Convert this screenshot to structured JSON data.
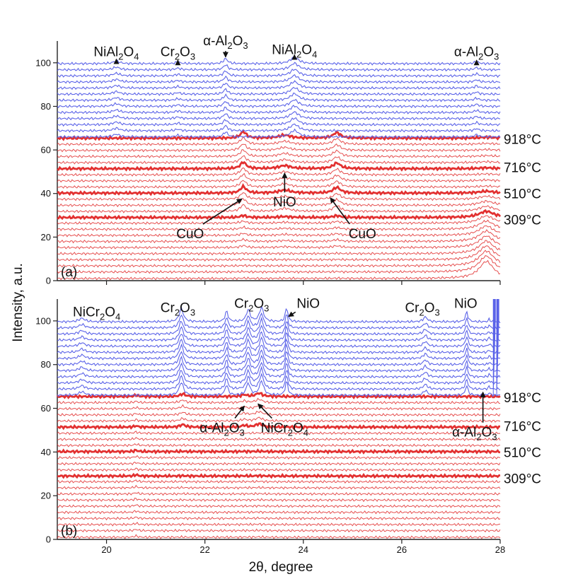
{
  "chart_data": [
    {
      "panel": "(a)",
      "type": "line",
      "xlabel": "2θ, degree",
      "ylabel": "Intensity, a.u.",
      "xlim": [
        19,
        28
      ],
      "ylim": [
        0,
        110
      ],
      "x_ticks": [
        "20",
        "22",
        "24",
        "26",
        "28"
      ],
      "y_ticks": [
        "0",
        "20",
        "40",
        "60",
        "80",
        "100"
      ],
      "colors": {
        "heating": "#e23030",
        "cooling": "#5b63e8"
      },
      "red_offsets": [
        1,
        4,
        6.8,
        9.6,
        12.4,
        15.2,
        18,
        20.8,
        23.6,
        26.4,
        29,
        31.8,
        34.6,
        37.4,
        40.2,
        43,
        45.8,
        48.6,
        51.4,
        54.2,
        57,
        59.8,
        62.6,
        65.4
      ],
      "blue_offsets": [
        66,
        68.8,
        71.6,
        74.4,
        77.2,
        80,
        82.8,
        85.6,
        88.4,
        91.2,
        94,
        96.8,
        99.6
      ],
      "temperatures": [
        {
          "label": "918°C",
          "y": 65
        },
        {
          "label": "716°C",
          "y": 52
        },
        {
          "label": "510°C",
          "y": 40
        },
        {
          "label": "309°C",
          "y": 28
        }
      ],
      "peaks": {
        "red": [
          {
            "x": 22.78,
            "height": 3.0,
            "width": 0.07,
            "phase": "CuO"
          },
          {
            "x": 23.62,
            "height": 1.4,
            "width": 0.14,
            "phase": "NiO"
          },
          {
            "x": 24.68,
            "height": 2.6,
            "width": 0.09,
            "phase": "CuO"
          },
          {
            "x": 27.72,
            "height": 8.0,
            "width": 0.18,
            "phase": "substrate"
          }
        ],
        "blue": [
          {
            "x": 20.2,
            "height": 1.2,
            "width": 0.08,
            "phase": "NiAl2O4"
          },
          {
            "x": 21.45,
            "height": 0.7,
            "width": 0.06,
            "phase": "Cr2O3"
          },
          {
            "x": 22.42,
            "height": 2.3,
            "width": 0.05,
            "phase": "α-Al2O3"
          },
          {
            "x": 23.82,
            "height": 3.0,
            "width": 0.1,
            "phase": "NiAl2O4"
          },
          {
            "x": 27.52,
            "height": 1.0,
            "width": 0.05,
            "phase": "α-Al2O3"
          }
        ]
      },
      "annotations": [
        {
          "parts": [
            [
              "NiAl"
            ],
            [
              "2",
              "sub"
            ],
            [
              "O"
            ],
            [
              "4",
              "sub"
            ]
          ],
          "x": 20.2,
          "text_y": 103,
          "tip_y": 101,
          "arrow": "down"
        },
        {
          "parts": [
            [
              "Cr"
            ],
            [
              "2",
              "sub"
            ],
            [
              "O"
            ],
            [
              "3",
              "sub"
            ]
          ],
          "x": 21.45,
          "text_y": 103,
          "tip_y": 100.5,
          "arrow": "down"
        },
        {
          "parts": [
            [
              "α-Al"
            ],
            [
              "2",
              "sub"
            ],
            [
              "O"
            ],
            [
              "3",
              "sub"
            ]
          ],
          "x": 22.42,
          "text_y": 108,
          "tip_y": 102,
          "arrow": "down"
        },
        {
          "parts": [
            [
              "NiAl"
            ],
            [
              "2",
              "sub"
            ],
            [
              "O"
            ],
            [
              "4",
              "sub"
            ]
          ],
          "x": 23.82,
          "text_y": 104,
          "tip_y": 103,
          "arrow": "down"
        },
        {
          "parts": [
            [
              "α-Al"
            ],
            [
              "2",
              "sub"
            ],
            [
              "O"
            ],
            [
              "3",
              "sub"
            ]
          ],
          "x": 27.52,
          "text_y": 103,
          "tip_y": 100.5,
          "arrow": "down"
        },
        {
          "parts": [
            [
              "NiO"
            ]
          ],
          "x": 23.62,
          "text_y": 34,
          "tip_y": 50,
          "arrow": "up"
        },
        {
          "parts": [
            [
              "CuO"
            ]
          ],
          "x": 21.7,
          "text_y": 19.5,
          "tip_x": 22.75,
          "tip_y": 37.5,
          "arrow": "diag"
        },
        {
          "parts": [
            [
              "CuO"
            ]
          ],
          "x": 25.2,
          "text_y": 19.5,
          "tip_x": 24.55,
          "tip_y": 38,
          "arrow": "diag"
        }
      ]
    },
    {
      "panel": "(b)",
      "type": "line",
      "xlabel": "2θ, degree",
      "ylabel": "Intensity, a.u.",
      "xlim": [
        19,
        28
      ],
      "ylim": [
        0,
        110
      ],
      "x_ticks": [
        "20",
        "22",
        "24",
        "26",
        "28"
      ],
      "y_ticks": [
        "0",
        "20",
        "40",
        "60",
        "80",
        "100"
      ],
      "colors": {
        "heating": "#e23030",
        "cooling": "#5b63e8"
      },
      "red_offsets": [
        1,
        4,
        6.8,
        9.6,
        12.4,
        15.2,
        18,
        20.8,
        23.6,
        26.4,
        29,
        31.8,
        34.6,
        37.4,
        40.2,
        43,
        45.8,
        48.6,
        51.4,
        54.2,
        57,
        59.8,
        62.6,
        65.4
      ],
      "blue_offsets": [
        66,
        68.8,
        71.6,
        74.4,
        77.2,
        80,
        82.8,
        85.6,
        88.4,
        91.2,
        94,
        96.8,
        99.6
      ],
      "temperatures": [
        {
          "label": "918°C",
          "y": 65
        },
        {
          "label": "716°C",
          "y": 52
        },
        {
          "label": "510°C",
          "y": 40
        },
        {
          "label": "309°C",
          "y": 28
        }
      ],
      "peaks": {
        "red": [
          {
            "x": 21.55,
            "height": 1.2,
            "width": 0.06,
            "phase": "Cr2O3"
          },
          {
            "x": 22.8,
            "height": 0.8,
            "width": 0.06,
            "phase": "α-Al2O3"
          },
          {
            "x": 23.1,
            "height": 1.5,
            "width": 0.08,
            "phase": "NiCr2O4"
          },
          {
            "x": 20.6,
            "height": 0.6,
            "width": 0.04,
            "phase": "unlabeled"
          }
        ],
        "blue": [
          {
            "x": 19.5,
            "height": 1.6,
            "width": 0.07,
            "phase": "NiCr2O4"
          },
          {
            "x": 21.52,
            "height": 6.0,
            "width": 0.05,
            "phase": "Cr2O3"
          },
          {
            "x": 22.44,
            "height": 4.8,
            "width": 0.035,
            "phase": "α-Al2O3"
          },
          {
            "x": 22.88,
            "height": 5.5,
            "width": 0.045,
            "phase": "NiCr2O4"
          },
          {
            "x": 23.15,
            "height": 6.5,
            "width": 0.05,
            "phase": "Cr2O3"
          },
          {
            "x": 23.66,
            "height": 6.5,
            "width": 0.03,
            "phase": "NiO"
          },
          {
            "x": 26.48,
            "height": 2.2,
            "width": 0.05,
            "phase": "Cr2O3"
          },
          {
            "x": 27.32,
            "height": 4.5,
            "width": 0.03,
            "phase": "NiO"
          },
          {
            "x": 27.78,
            "height": 1.2,
            "width": 0.02,
            "phase": "α-Al2O3"
          }
        ],
        "blue_spike": {
          "x": [
            27.86,
            27.93
          ],
          "top": 110
        }
      },
      "annotations": [
        {
          "parts": [
            [
              "NiCr"
            ],
            [
              "2",
              "sub"
            ],
            [
              "O"
            ],
            [
              "4",
              "sub"
            ]
          ],
          "x": 19.8,
          "text_y": 102,
          "arrow": "none"
        },
        {
          "parts": [
            [
              "Cr"
            ],
            [
              "2",
              "sub"
            ],
            [
              "O"
            ],
            [
              "3",
              "sub"
            ]
          ],
          "x": 21.45,
          "text_y": 104,
          "arrow": "none"
        },
        {
          "parts": [
            [
              "Cr"
            ],
            [
              "2",
              "sub"
            ],
            [
              "O"
            ],
            [
              "3",
              "sub"
            ]
          ],
          "x": 22.95,
          "text_y": 106,
          "arrow": "none"
        },
        {
          "parts": [
            [
              "NiO"
            ]
          ],
          "x": 24.1,
          "text_y": 106,
          "tip_x": 23.7,
          "tip_y": 102,
          "arrow": "diag"
        },
        {
          "parts": [
            [
              "Cr"
            ],
            [
              "2",
              "sub"
            ],
            [
              "O"
            ],
            [
              "3",
              "sub"
            ]
          ],
          "x": 26.42,
          "text_y": 104,
          "arrow": "none"
        },
        {
          "parts": [
            [
              "NiO"
            ]
          ],
          "x": 27.3,
          "text_y": 106,
          "arrow": "none"
        },
        {
          "parts": [
            [
              "α-Al"
            ],
            [
              "2",
              "sub"
            ],
            [
              "O"
            ],
            [
              "3",
              "sub"
            ]
          ],
          "x": 22.35,
          "text_y": 49,
          "tip_x": 22.8,
          "tip_y": 61,
          "arrow": "diag"
        },
        {
          "parts": [
            [
              "NiCr"
            ],
            [
              "2",
              "sub"
            ],
            [
              "O"
            ],
            [
              "4",
              "sub"
            ]
          ],
          "x": 23.62,
          "text_y": 49,
          "tip_x": 23.08,
          "tip_y": 62,
          "arrow": "diag"
        },
        {
          "parts": [
            [
              "α-Al"
            ],
            [
              "2",
              "sub"
            ],
            [
              "O"
            ],
            [
              "3",
              "sub"
            ]
          ],
          "x": 27.48,
          "text_y": 47,
          "tip_x": 27.65,
          "tip_y": 68,
          "arrow": "up"
        }
      ]
    }
  ]
}
